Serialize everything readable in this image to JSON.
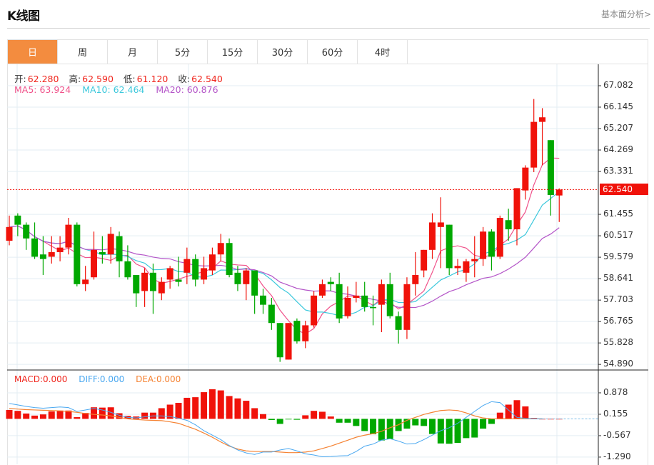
{
  "header": {
    "title": "K线图",
    "link": "基本面分析>"
  },
  "tabs": [
    {
      "label": "日",
      "active": true
    },
    {
      "label": "周"
    },
    {
      "label": "月"
    },
    {
      "label": "5分"
    },
    {
      "label": "15分"
    },
    {
      "label": "30分"
    },
    {
      "label": "60分"
    },
    {
      "label": "4时"
    }
  ],
  "ohlc": {
    "open_label": "开:",
    "open": "62.280",
    "high_label": "高:",
    "high": "62.590",
    "low_label": "低:",
    "low": "61.120",
    "close_label": "收:",
    "close": "62.540"
  },
  "ma": {
    "ma5": "MA5: 63.924",
    "ma10": "MA10: 62.464",
    "ma20": "MA20: 60.876"
  },
  "macd_legend": {
    "macd": "MACD:0.000",
    "diff": "DIFF:0.000",
    "dea": "DEA:0.000"
  },
  "colors": {
    "up": "#f0120a",
    "down": "#00a800",
    "ma5": "#f0528a",
    "ma10": "#3cc8dc",
    "ma20": "#b455c8",
    "diff": "#4aa8f0",
    "dea": "#f58232",
    "accent": "#f38c3f"
  },
  "chart_data": {
    "type": "candlestick",
    "price_axis": {
      "ticks": [
        "67.082",
        "66.145",
        "65.207",
        "64.269",
        "63.331",
        "61.455",
        "60.517",
        "59.579",
        "58.641",
        "57.703",
        "56.765",
        "55.828",
        "54.890"
      ],
      "range": [
        54.89,
        67.082
      ]
    },
    "last_price": "62.540",
    "candles": [
      [
        60.3,
        61.4,
        60.1,
        60.9
      ],
      [
        61.4,
        61.5,
        60.5,
        61.0
      ],
      [
        61.0,
        61.1,
        59.9,
        60.4
      ],
      [
        60.4,
        61.1,
        59.5,
        59.6
      ],
      [
        59.7,
        60.5,
        58.8,
        59.5
      ],
      [
        59.6,
        60.5,
        59.3,
        59.8
      ],
      [
        59.8,
        60.5,
        59.4,
        60.0
      ],
      [
        60.0,
        61.3,
        59.7,
        61.0
      ],
      [
        61.0,
        61.1,
        58.3,
        58.4
      ],
      [
        58.4,
        59.2,
        58.1,
        58.6
      ],
      [
        58.7,
        60.7,
        58.6,
        59.9
      ],
      [
        59.8,
        60.5,
        59.3,
        59.7
      ],
      [
        59.7,
        60.9,
        59.3,
        60.6
      ],
      [
        60.5,
        60.7,
        58.7,
        59.4
      ],
      [
        59.4,
        60.1,
        58.6,
        58.7
      ],
      [
        58.8,
        58.8,
        57.4,
        58.0
      ],
      [
        58.1,
        59.1,
        57.4,
        58.9
      ],
      [
        58.9,
        59.3,
        57.1,
        58.1
      ],
      [
        58.0,
        58.7,
        57.7,
        58.5
      ],
      [
        58.6,
        59.2,
        58.2,
        59.1
      ],
      [
        58.6,
        59.6,
        58.3,
        58.5
      ],
      [
        58.9,
        60.0,
        58.4,
        59.5
      ],
      [
        59.5,
        59.7,
        58.3,
        58.6
      ],
      [
        58.6,
        59.6,
        58.4,
        59.1
      ],
      [
        59.0,
        60.0,
        58.8,
        59.7
      ],
      [
        59.7,
        60.6,
        59.4,
        60.2
      ],
      [
        60.2,
        60.4,
        58.7,
        58.8
      ],
      [
        58.9,
        59.2,
        58.1,
        58.4
      ],
      [
        58.4,
        59.1,
        57.7,
        59.0
      ],
      [
        59.0,
        59.0,
        57.1,
        57.9
      ],
      [
        57.9,
        58.2,
        57.1,
        57.5
      ],
      [
        57.5,
        57.8,
        56.4,
        56.7
      ],
      [
        56.7,
        56.7,
        55.0,
        55.2
      ],
      [
        55.1,
        56.7,
        55.1,
        56.7
      ],
      [
        56.8,
        56.9,
        55.8,
        55.9
      ],
      [
        55.9,
        56.8,
        55.6,
        56.6
      ],
      [
        56.6,
        58.1,
        56.5,
        57.9
      ],
      [
        57.9,
        58.6,
        57.8,
        58.4
      ],
      [
        58.5,
        58.7,
        58.1,
        58.4
      ],
      [
        58.4,
        58.9,
        56.7,
        56.9
      ],
      [
        57.0,
        58.3,
        56.9,
        57.8
      ],
      [
        57.8,
        58.5,
        57.6,
        57.9
      ],
      [
        57.9,
        58.5,
        57.2,
        57.4
      ],
      [
        57.4,
        57.9,
        56.6,
        57.35
      ],
      [
        57.5,
        58.6,
        56.3,
        58.4
      ],
      [
        58.4,
        58.9,
        56.9,
        57.0
      ],
      [
        57.0,
        57.2,
        55.8,
        56.4
      ],
      [
        56.4,
        58.7,
        56.0,
        58.4
      ],
      [
        58.4,
        59.8,
        57.9,
        58.8
      ],
      [
        59.0,
        59.9,
        58.7,
        59.9
      ],
      [
        59.9,
        61.5,
        59.5,
        61.1
      ],
      [
        60.9,
        62.2,
        59.1,
        61.1
      ],
      [
        61.0,
        61.0,
        58.8,
        59.1
      ],
      [
        59.1,
        59.5,
        58.8,
        59.2
      ],
      [
        58.9,
        59.5,
        58.5,
        59.4
      ],
      [
        59.4,
        60.5,
        58.7,
        59.5
      ],
      [
        59.5,
        60.9,
        59.2,
        60.7
      ],
      [
        60.7,
        60.8,
        59.0,
        59.6
      ],
      [
        59.6,
        61.4,
        59.5,
        61.3
      ],
      [
        61.2,
        61.7,
        60.3,
        60.8
      ],
      [
        60.8,
        62.6,
        60.1,
        62.6
      ],
      [
        62.5,
        63.6,
        62.1,
        63.5
      ],
      [
        63.5,
        66.5,
        63.3,
        65.5
      ],
      [
        65.5,
        66.1,
        63.6,
        65.7
      ],
      [
        64.7,
        64.7,
        61.4,
        62.3
      ],
      [
        62.28,
        62.59,
        61.12,
        62.54
      ]
    ],
    "macd_axis": {
      "ticks": [
        "0.878",
        "0.155",
        "-0.567",
        "-1.290"
      ]
    },
    "macd": [
      0.3,
      0.27,
      0.18,
      0.11,
      0.15,
      0.25,
      0.28,
      0.28,
      0.06,
      0.2,
      0.39,
      0.38,
      0.39,
      0.19,
      0.1,
      0.08,
      0.21,
      0.21,
      0.36,
      0.48,
      0.54,
      0.71,
      0.73,
      0.9,
      1.0,
      0.96,
      0.77,
      0.69,
      0.61,
      0.36,
      0.16,
      -0.04,
      -0.17,
      -0.02,
      -0.03,
      0.12,
      0.27,
      0.24,
      0.08,
      -0.13,
      -0.13,
      -0.24,
      -0.41,
      -0.52,
      -0.73,
      -0.68,
      -0.41,
      -0.33,
      -0.22,
      -0.24,
      -0.51,
      -0.83,
      -0.84,
      -0.81,
      -0.65,
      -0.63,
      -0.33,
      -0.17,
      0.21,
      0.48,
      0.63,
      0.42,
      0.03,
      0.0,
      0.0,
      0.0
    ],
    "diff": [
      0.52,
      0.47,
      0.42,
      0.38,
      0.36,
      0.38,
      0.4,
      0.38,
      0.25,
      0.3,
      0.35,
      0.3,
      0.22,
      0.12,
      0.05,
      0.03,
      0.07,
      0.1,
      0.1,
      0.08,
      0.02,
      -0.05,
      -0.2,
      -0.4,
      -0.55,
      -0.7,
      -0.9,
      -1.05,
      -1.15,
      -1.2,
      -1.12,
      -1.12,
      -1.05,
      -1.0,
      -1.08,
      -1.18,
      -1.22,
      -1.28,
      -1.27,
      -1.25,
      -1.24,
      -1.1,
      -0.92,
      -0.85,
      -0.72,
      -0.67,
      -0.75,
      -0.85,
      -0.83,
      -0.7,
      -0.55,
      -0.4,
      -0.3,
      -0.15,
      0.05,
      0.25,
      0.45,
      0.58,
      0.55,
      0.3,
      0.05,
      0.02,
      0.0,
      0.0,
      0.0,
      0.0
    ],
    "dea": [
      0.35,
      0.33,
      0.31,
      0.3,
      0.29,
      0.28,
      0.27,
      0.25,
      0.22,
      0.18,
      0.15,
      0.13,
      0.1,
      0.05,
      0.0,
      -0.02,
      -0.04,
      -0.05,
      -0.06,
      -0.1,
      -0.15,
      -0.25,
      -0.35,
      -0.48,
      -0.62,
      -0.78,
      -0.92,
      -1.02,
      -1.08,
      -1.1,
      -1.1,
      -1.1,
      -1.12,
      -1.14,
      -1.14,
      -1.12,
      -1.08,
      -1.0,
      -0.92,
      -0.82,
      -0.72,
      -0.62,
      -0.55,
      -0.5,
      -0.42,
      -0.3,
      -0.2,
      -0.05,
      0.05,
      0.15,
      0.22,
      0.28,
      0.3,
      0.28,
      0.2,
      0.1,
      0.03,
      0.0,
      0.0,
      0.0,
      0.0,
      0.0,
      0.0,
      0.0,
      0.0,
      0.0
    ]
  }
}
